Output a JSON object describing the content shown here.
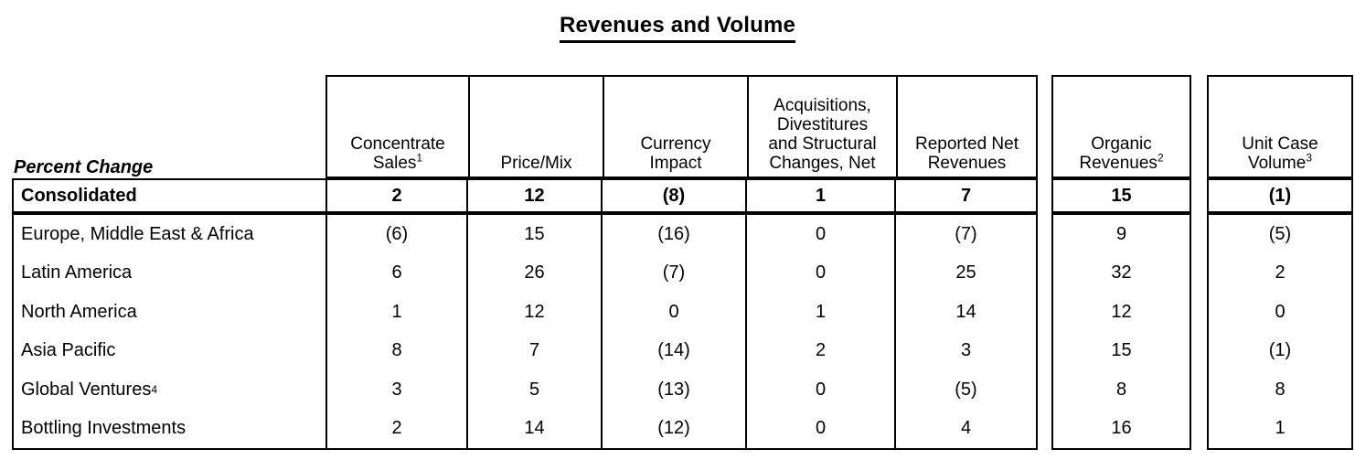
{
  "title": "Revenues and Volume",
  "corner_label": "Percent Change",
  "columns": [
    {
      "text": "Concentrate\nSales",
      "sup": "1"
    },
    {
      "text": "Price/Mix",
      "sup": ""
    },
    {
      "text": "Currency\nImpact",
      "sup": ""
    },
    {
      "text": "Acquisitions,\nDivestitures\nand Structural\nChanges, Net",
      "sup": ""
    },
    {
      "text": "Reported Net\nRevenues",
      "sup": ""
    },
    {
      "text": "Organic\nRevenues",
      "sup": "2"
    },
    {
      "text": "Unit Case\nVolume",
      "sup": "3"
    }
  ],
  "rows": [
    {
      "label": "Consolidated",
      "sup": "",
      "values": [
        "2",
        "12",
        "(8)",
        "1",
        "7",
        "15",
        "(1)"
      ]
    },
    {
      "label": "Europe, Middle East & Africa",
      "sup": "",
      "values": [
        "(6)",
        "15",
        "(16)",
        "0",
        "(7)",
        "9",
        "(5)"
      ]
    },
    {
      "label": "Latin America",
      "sup": "",
      "values": [
        "6",
        "26",
        "(7)",
        "0",
        "25",
        "32",
        "2"
      ]
    },
    {
      "label": "North America",
      "sup": "",
      "values": [
        "1",
        "12",
        "0",
        "1",
        "14",
        "12",
        "0"
      ]
    },
    {
      "label": "Asia Pacific",
      "sup": "",
      "values": [
        "8",
        "7",
        "(14)",
        "2",
        "3",
        "15",
        "(1)"
      ]
    },
    {
      "label": "Global Ventures",
      "sup": "4",
      "values": [
        "3",
        "5",
        "(13)",
        "0",
        "(5)",
        "8",
        "8"
      ]
    },
    {
      "label": "Bottling Investments",
      "sup": "",
      "values": [
        "2",
        "14",
        "(12)",
        "0",
        "4",
        "16",
        "1"
      ]
    }
  ],
  "colors": {
    "background": "#ffffff",
    "border": "#000000",
    "text": "#000000"
  }
}
